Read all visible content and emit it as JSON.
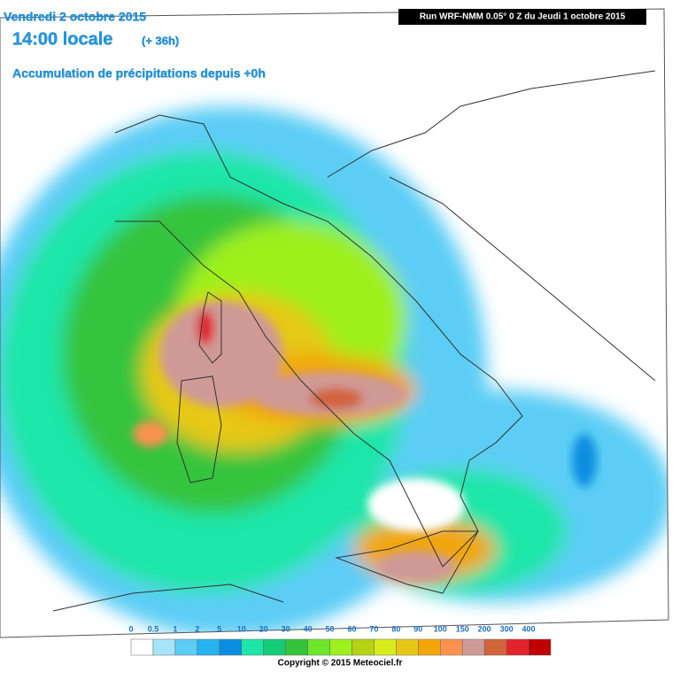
{
  "header": {
    "date": "Vendredi 2 octobre 2015",
    "time": "14:00 locale",
    "lead": "(+ 36h)",
    "subtitle": "Accumulation de précipitations depuis +0h",
    "run": "Run WRF-NMM 0.05° 0 Z du Jeudi 1 octobre 2015"
  },
  "legend": {
    "items": [
      {
        "value": 0,
        "color": "#ffffff"
      },
      {
        "value": 0.5,
        "color": "#a6e4fa"
      },
      {
        "value": 1,
        "color": "#5ccdf5"
      },
      {
        "value": 2,
        "color": "#27b2f0"
      },
      {
        "value": 5,
        "color": "#0a8fe0"
      },
      {
        "value": 10,
        "color": "#1ee6a8"
      },
      {
        "value": 20,
        "color": "#14cc78"
      },
      {
        "value": 30,
        "color": "#34c43c"
      },
      {
        "value": 40,
        "color": "#6ee62a"
      },
      {
        "value": 50,
        "color": "#9ef01e"
      },
      {
        "value": 60,
        "color": "#b6d214"
      },
      {
        "value": 70,
        "color": "#d8ec1c"
      },
      {
        "value": 80,
        "color": "#e6c814"
      },
      {
        "value": 90,
        "color": "#f2a60a"
      },
      {
        "value": 100,
        "color": "#f79250"
      },
      {
        "value": 150,
        "color": "#cf9a96"
      },
      {
        "value": 200,
        "color": "#d2643a"
      },
      {
        "value": 300,
        "color": "#e0242a"
      },
      {
        "value": 400,
        "color": "#c00000"
      }
    ]
  },
  "footer": {
    "copyright": "Copyright © 2015 Meteociel.fr"
  }
}
